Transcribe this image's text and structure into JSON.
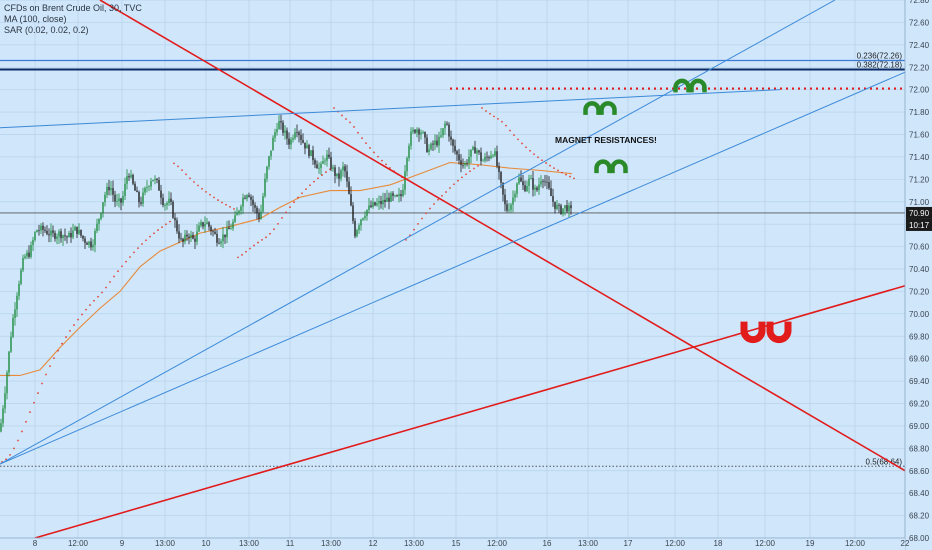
{
  "legend": {
    "line1": "CFDs on Brent Crude Oil, 30, TVC",
    "line2": "MA (100, close)",
    "line3": "SAR (0.02, 0.02, 0.2)"
  },
  "colors": {
    "background": "#cfe6fb",
    "up": "#1a8a3a",
    "down": "#1b1b1b",
    "ma": "#e88a3a",
    "sar": "#e2473a",
    "trend_red": "#e21b1b",
    "trend_blue": "#3d8ad8",
    "resistance": "#e21b1b",
    "magnet_green": "#2a8a2a",
    "magnet_red": "#e21b1b",
    "price_badge": "#1b1b1b",
    "countdown_badge": "#1b1b1b"
  },
  "chart_data": {
    "type": "candlestick",
    "ylim": [
      68.0,
      72.8
    ],
    "xlim": [
      0,
      932
    ],
    "x_tick_labels": [
      {
        "label": "8",
        "x": 35
      },
      {
        "label": "12:00",
        "x": 78
      },
      {
        "label": "9",
        "x": 122
      },
      {
        "label": "13:00",
        "x": 165
      },
      {
        "label": "10",
        "x": 206
      },
      {
        "label": "13:00",
        "x": 249
      },
      {
        "label": "11",
        "x": 290
      },
      {
        "label": "13:00",
        "x": 331
      },
      {
        "label": "12",
        "x": 373
      },
      {
        "label": "13:00",
        "x": 414
      },
      {
        "label": "15",
        "x": 456
      },
      {
        "label": "12:00",
        "x": 497
      },
      {
        "label": "16",
        "x": 547
      },
      {
        "label": "13:00",
        "x": 588
      },
      {
        "label": "17",
        "x": 628
      },
      {
        "label": "12:00",
        "x": 675
      },
      {
        "label": "18",
        "x": 718
      },
      {
        "label": "12:00",
        "x": 765
      },
      {
        "label": "19",
        "x": 810
      },
      {
        "label": "12:00",
        "x": 855
      },
      {
        "label": "22",
        "x": 905
      }
    ],
    "y_ticks": [
      "72.80",
      "72.60",
      "72.40",
      "72.20",
      "72.00",
      "71.80",
      "71.60",
      "71.40",
      "71.20",
      "71.00",
      "70.80",
      "70.60",
      "70.40",
      "70.20",
      "70.00",
      "69.80",
      "69.60",
      "69.40",
      "69.20",
      "69.00",
      "68.80",
      "68.60",
      "68.40",
      "68.20",
      "68.00"
    ],
    "price_label": "70.90",
    "countdown_label": "10:17",
    "last_price": 70.9,
    "anchors": [
      {
        "x": 0,
        "y": 68.95
      },
      {
        "x": 6,
        "y": 69.4
      },
      {
        "x": 12,
        "y": 69.9
      },
      {
        "x": 18,
        "y": 70.25
      },
      {
        "x": 24,
        "y": 70.5
      },
      {
        "x": 30,
        "y": 70.55
      },
      {
        "x": 36,
        "y": 70.75
      },
      {
        "x": 44,
        "y": 70.75
      },
      {
        "x": 52,
        "y": 70.7
      },
      {
        "x": 60,
        "y": 70.72
      },
      {
        "x": 68,
        "y": 70.68
      },
      {
        "x": 76,
        "y": 70.76
      },
      {
        "x": 84,
        "y": 70.66
      },
      {
        "x": 92,
        "y": 70.62
      },
      {
        "x": 98,
        "y": 70.82
      },
      {
        "x": 104,
        "y": 71.05
      },
      {
        "x": 110,
        "y": 71.15
      },
      {
        "x": 116,
        "y": 70.98
      },
      {
        "x": 122,
        "y": 71.0
      },
      {
        "x": 128,
        "y": 71.28
      },
      {
        "x": 134,
        "y": 71.12
      },
      {
        "x": 140,
        "y": 70.98
      },
      {
        "x": 146,
        "y": 71.12
      },
      {
        "x": 152,
        "y": 71.22
      },
      {
        "x": 158,
        "y": 71.15
      },
      {
        "x": 164,
        "y": 70.98
      },
      {
        "x": 170,
        "y": 71.0
      },
      {
        "x": 176,
        "y": 70.78
      },
      {
        "x": 182,
        "y": 70.62
      },
      {
        "x": 188,
        "y": 70.72
      },
      {
        "x": 194,
        "y": 70.65
      },
      {
        "x": 200,
        "y": 70.78
      },
      {
        "x": 206,
        "y": 70.82
      },
      {
        "x": 212,
        "y": 70.74
      },
      {
        "x": 218,
        "y": 70.66
      },
      {
        "x": 224,
        "y": 70.7
      },
      {
        "x": 230,
        "y": 70.76
      },
      {
        "x": 236,
        "y": 70.86
      },
      {
        "x": 242,
        "y": 71.02
      },
      {
        "x": 248,
        "y": 71.1
      },
      {
        "x": 254,
        "y": 70.95
      },
      {
        "x": 260,
        "y": 70.85
      },
      {
        "x": 266,
        "y": 71.25
      },
      {
        "x": 272,
        "y": 71.52
      },
      {
        "x": 278,
        "y": 71.72
      },
      {
        "x": 284,
        "y": 71.62
      },
      {
        "x": 290,
        "y": 71.52
      },
      {
        "x": 296,
        "y": 71.68
      },
      {
        "x": 302,
        "y": 71.55
      },
      {
        "x": 308,
        "y": 71.46
      },
      {
        "x": 314,
        "y": 71.38
      },
      {
        "x": 320,
        "y": 71.28
      },
      {
        "x": 326,
        "y": 71.42
      },
      {
        "x": 332,
        "y": 71.3
      },
      {
        "x": 338,
        "y": 71.2
      },
      {
        "x": 344,
        "y": 71.32
      },
      {
        "x": 350,
        "y": 71.0
      },
      {
        "x": 355,
        "y": 70.72
      },
      {
        "x": 360,
        "y": 70.84
      },
      {
        "x": 366,
        "y": 70.92
      },
      {
        "x": 372,
        "y": 70.96
      },
      {
        "x": 378,
        "y": 70.98
      },
      {
        "x": 384,
        "y": 71.0
      },
      {
        "x": 390,
        "y": 71.04
      },
      {
        "x": 396,
        "y": 71.02
      },
      {
        "x": 402,
        "y": 71.06
      },
      {
        "x": 406,
        "y": 71.38
      },
      {
        "x": 410,
        "y": 71.58
      },
      {
        "x": 416,
        "y": 71.66
      },
      {
        "x": 422,
        "y": 71.62
      },
      {
        "x": 428,
        "y": 71.45
      },
      {
        "x": 434,
        "y": 71.52
      },
      {
        "x": 440,
        "y": 71.55
      },
      {
        "x": 446,
        "y": 71.72
      },
      {
        "x": 452,
        "y": 71.5
      },
      {
        "x": 458,
        "y": 71.4
      },
      {
        "x": 464,
        "y": 71.32
      },
      {
        "x": 470,
        "y": 71.42
      },
      {
        "x": 476,
        "y": 71.48
      },
      {
        "x": 482,
        "y": 71.36
      },
      {
        "x": 488,
        "y": 71.4
      },
      {
        "x": 494,
        "y": 71.46
      },
      {
        "x": 500,
        "y": 71.18
      },
      {
        "x": 506,
        "y": 70.92
      },
      {
        "x": 512,
        "y": 71.0
      },
      {
        "x": 518,
        "y": 71.22
      },
      {
        "x": 524,
        "y": 71.12
      },
      {
        "x": 530,
        "y": 71.2
      },
      {
        "x": 536,
        "y": 71.08
      },
      {
        "x": 542,
        "y": 71.24
      },
      {
        "x": 548,
        "y": 71.12
      },
      {
        "x": 554,
        "y": 70.98
      },
      {
        "x": 560,
        "y": 70.92
      },
      {
        "x": 566,
        "y": 70.96
      },
      {
        "x": 572,
        "y": 70.9
      }
    ],
    "ma_points": [
      {
        "x": 0,
        "y": 69.45
      },
      {
        "x": 20,
        "y": 69.45
      },
      {
        "x": 40,
        "y": 69.5
      },
      {
        "x": 60,
        "y": 69.7
      },
      {
        "x": 80,
        "y": 69.88
      },
      {
        "x": 100,
        "y": 70.05
      },
      {
        "x": 120,
        "y": 70.2
      },
      {
        "x": 140,
        "y": 70.42
      },
      {
        "x": 160,
        "y": 70.56
      },
      {
        "x": 180,
        "y": 70.64
      },
      {
        "x": 200,
        "y": 70.72
      },
      {
        "x": 230,
        "y": 70.78
      },
      {
        "x": 260,
        "y": 70.85
      },
      {
        "x": 280,
        "y": 70.95
      },
      {
        "x": 300,
        "y": 71.04
      },
      {
        "x": 330,
        "y": 71.1
      },
      {
        "x": 360,
        "y": 71.1
      },
      {
        "x": 390,
        "y": 71.15
      },
      {
        "x": 420,
        "y": 71.25
      },
      {
        "x": 450,
        "y": 71.35
      },
      {
        "x": 480,
        "y": 71.33
      },
      {
        "x": 510,
        "y": 71.3
      },
      {
        "x": 540,
        "y": 71.28
      },
      {
        "x": 572,
        "y": 71.25
      }
    ],
    "trend_lines": [
      {
        "name": "red-down-trend",
        "color": "trend_red",
        "x1": 100,
        "y1": 72.8,
        "x2": 932,
        "y2": 68.46
      },
      {
        "name": "red-up-trend",
        "color": "trend_red",
        "x1": 35,
        "y1": 68.0,
        "x2": 932,
        "y2": 70.32
      },
      {
        "name": "blue-channel-upper",
        "color": "trend_blue",
        "x1": 0,
        "y1": 68.66,
        "x2": 835,
        "y2": 72.8
      },
      {
        "name": "blue-channel-lower",
        "color": "trend_blue",
        "x1": 0,
        "y1": 68.66,
        "x2": 932,
        "y2": 72.26
      },
      {
        "name": "blue-resistance-line",
        "color": "trend_blue",
        "x1": 0,
        "y1": 71.66,
        "x2": 780,
        "y2": 72.0
      }
    ],
    "fib_levels": [
      {
        "label": "0.236(72.26)",
        "value": 72.26,
        "style": "light"
      },
      {
        "label": "0.382(72.18)",
        "value": 72.18,
        "style": "bold"
      },
      {
        "label": "0.5(68.64)",
        "value": 68.64,
        "style": "dotted"
      }
    ],
    "resistance_dotted": {
      "value": 72.01,
      "x_start": 450
    },
    "annotation_text": "MAGNET RESISTANCES!",
    "magnet_green": [
      {
        "name": "magnet-green-top",
        "x": 690,
        "y": 72.02
      },
      {
        "name": "magnet-green-mid",
        "x": 600,
        "y": 71.82
      },
      {
        "name": "magnet-green-lower",
        "x": 611,
        "y": 71.3
      }
    ],
    "magnet_red": {
      "name": "magnet-red",
      "x": 766,
      "y": 69.85
    }
  }
}
